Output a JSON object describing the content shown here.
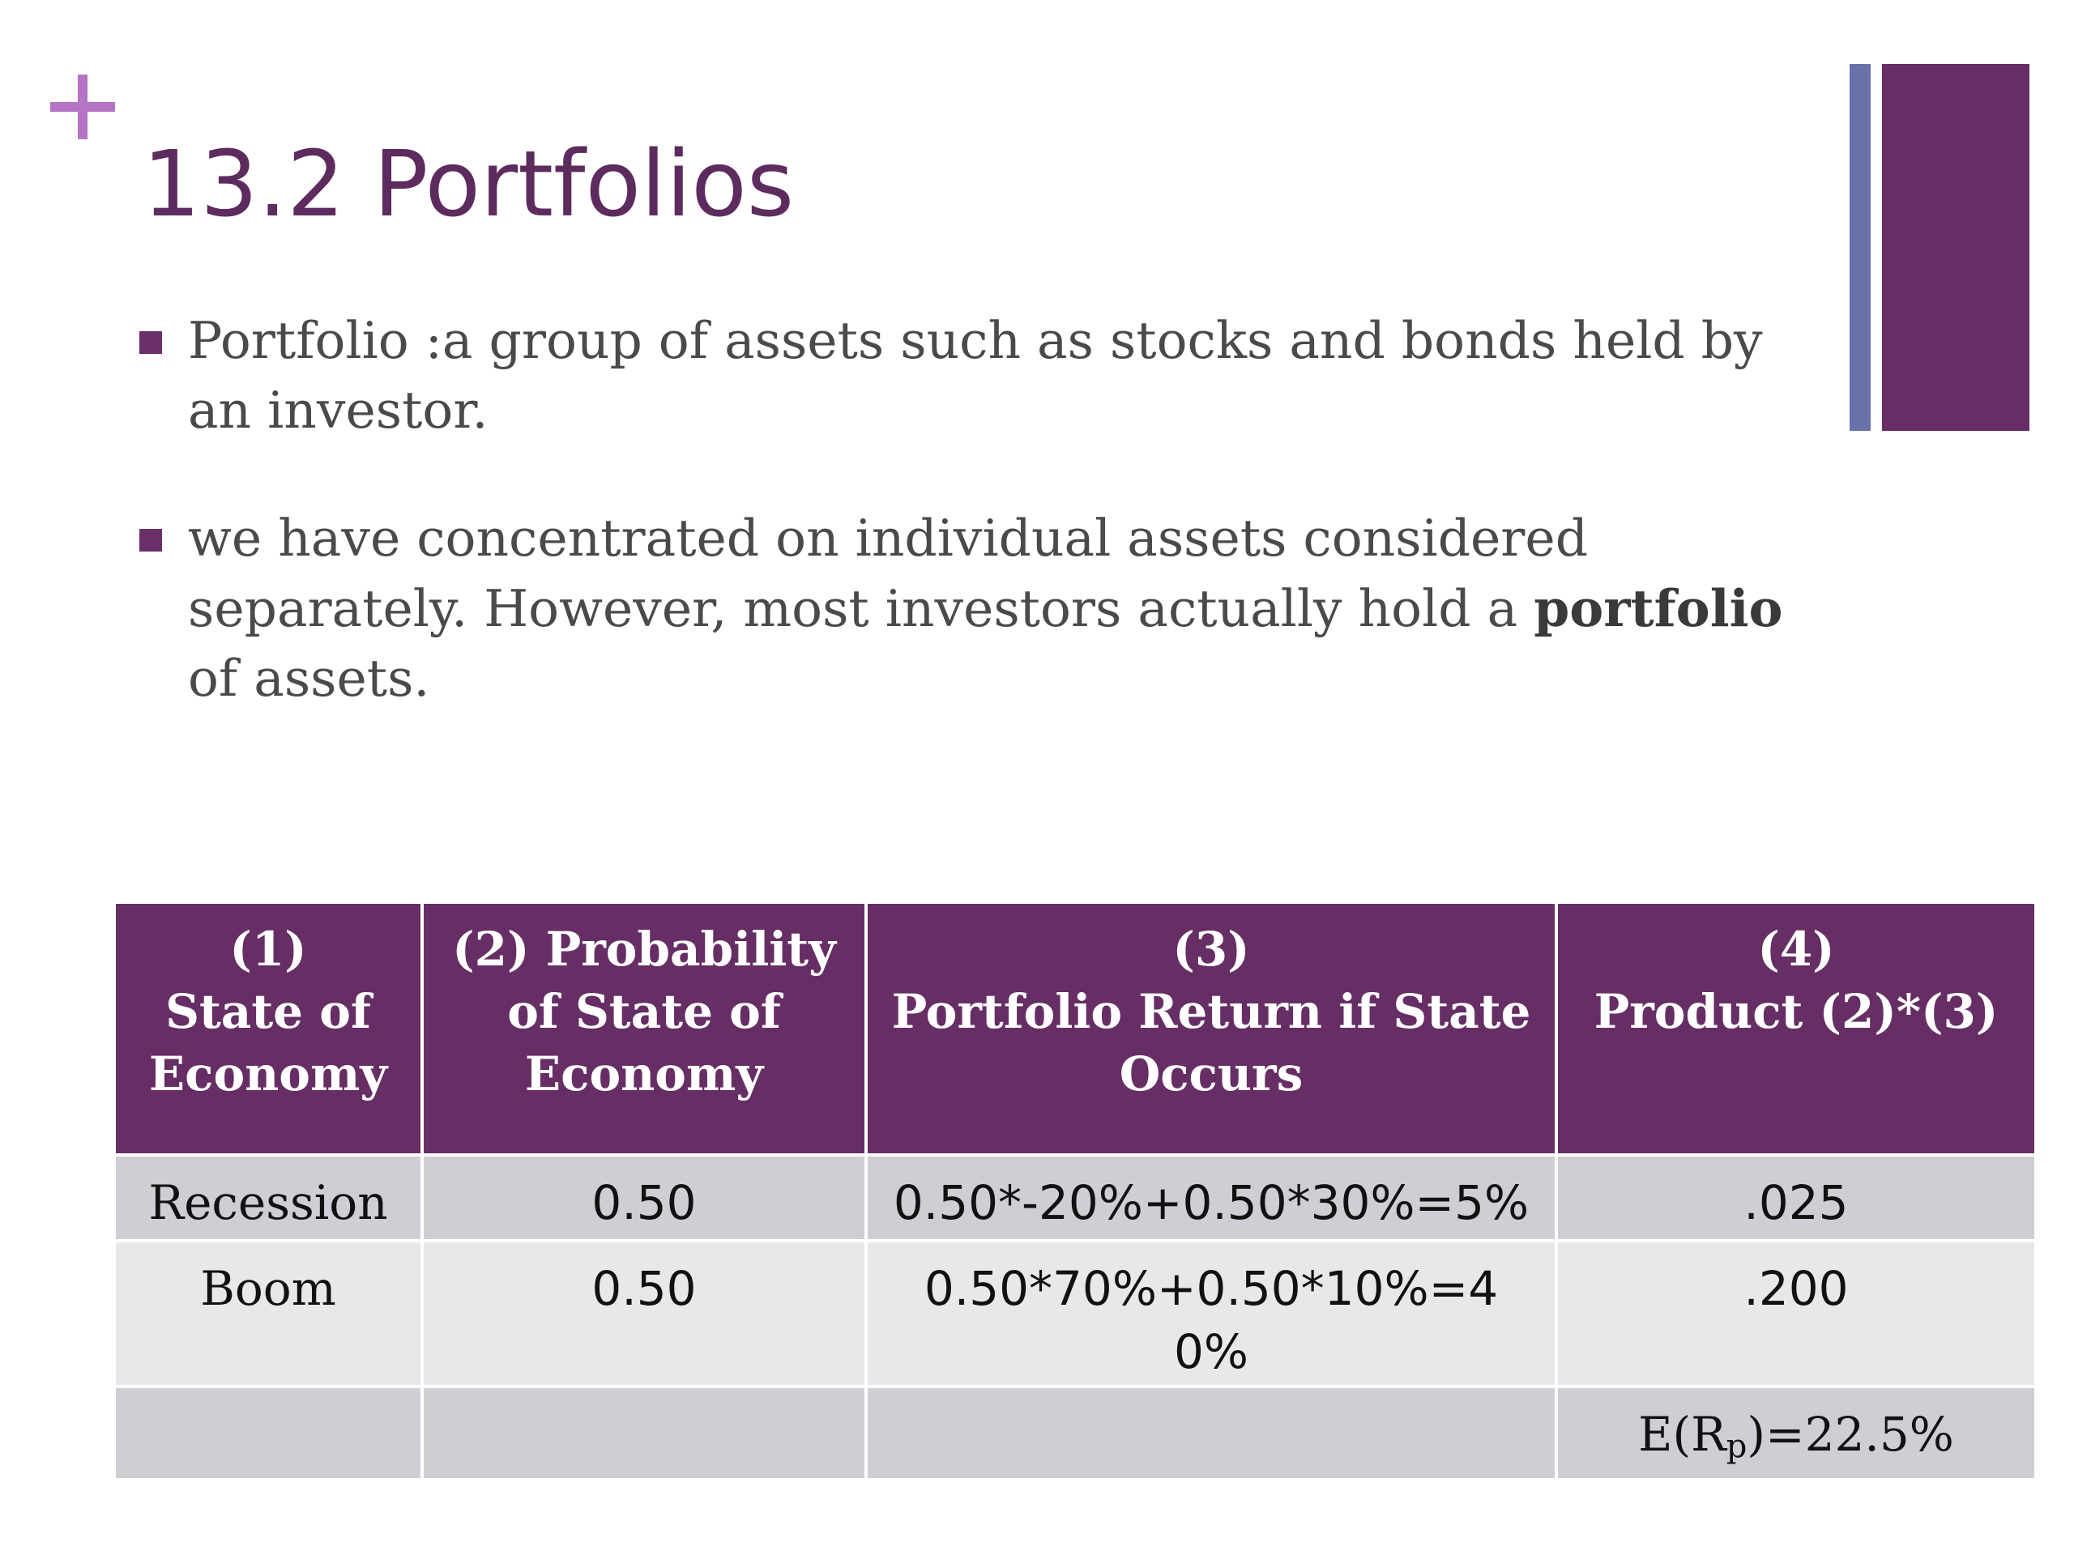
{
  "slide": {
    "title": "13.2 Portfolios",
    "bullets": [
      {
        "text": "Portfolio :a  group of assets such as stocks and bonds held by an investor."
      },
      {
        "text_before": "we have concentrated on individual assets considered separately. However, most investors actually hold a ",
        "bold": "portfolio",
        "text_after": " of assets."
      }
    ],
    "colors": {
      "title": "#5d2b5e",
      "plus": "#b574c4",
      "accent_bar_thin": "#6872a8",
      "accent_bar_thick": "#662e65",
      "table_header_bg": "#662e65",
      "row_dark": "#d0ced4",
      "row_light": "#e8e7ea"
    }
  },
  "table": {
    "headers": [
      {
        "line1": "(1)",
        "line2": "State of",
        "line3": "Economy"
      },
      {
        "line1": "(2) Probability",
        "line2": "of State of",
        "line3": "Economy"
      },
      {
        "line1": "(3)",
        "line2": "Portfolio Return if State",
        "line3": "Occurs"
      },
      {
        "line1": "(4)",
        "line2": "Product (2)*(3)",
        "line3": ""
      }
    ],
    "rows": [
      {
        "state": "Recession",
        "probability": "0.50",
        "return": "0.50*-20%+0.50*30%=5%",
        "product": ".025"
      },
      {
        "state": "Boom",
        "probability": "0.50",
        "return": "0.50*70%+0.50*10%=40%",
        "product": ".200"
      }
    ],
    "expected": {
      "prefix": "E(R",
      "sub": "p",
      "suffix": ")=22.5%"
    }
  }
}
